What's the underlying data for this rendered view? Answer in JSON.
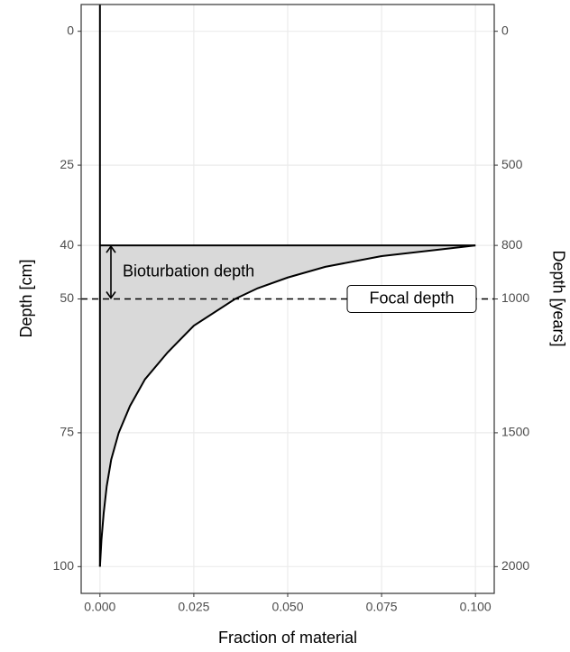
{
  "chart_data": {
    "type": "area",
    "x_label": "Fraction of material",
    "y_label": "Depth [cm]",
    "y2_label": "Depth [years]",
    "x": [
      0.1,
      0.075,
      0.06,
      0.05,
      0.042,
      0.036,
      0.025,
      0.018,
      0.012,
      0.008,
      0.005,
      0.003,
      0.0018,
      0.001,
      0.0004,
      0
    ],
    "y": [
      40,
      42,
      44,
      46,
      48,
      50,
      55,
      60,
      65,
      70,
      75,
      80,
      85,
      90,
      95,
      100
    ],
    "color": "#000000",
    "fill": "#d9d9d9",
    "xlim": [
      -0.005,
      0.105
    ],
    "xticks": [
      {
        "value": 0,
        "label": "0.000"
      },
      0.025,
      {
        "value": 0.05,
        "label": "0.050"
      },
      0.075,
      {
        "value": 0.1,
        "label": "0.100"
      }
    ],
    "ylim": [
      -5,
      105
    ],
    "yticks": [
      0,
      25,
      40,
      50,
      75,
      100
    ],
    "y_reversed": true,
    "y2lim": [
      -100,
      2100
    ],
    "y2ticks": [
      0,
      500,
      800,
      1000,
      1500,
      2000
    ],
    "grid": true,
    "annotations": [
      {
        "text": "Bioturbation depth",
        "from": 40,
        "to": 50
      },
      {
        "text": "Focal depth",
        "depth": 50
      }
    ]
  }
}
